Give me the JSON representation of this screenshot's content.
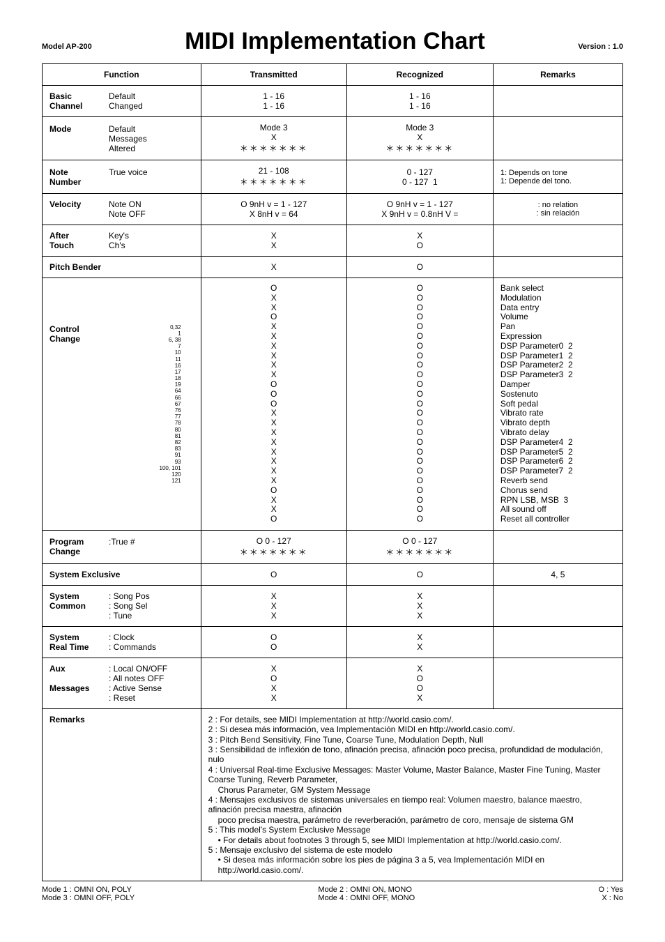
{
  "header": {
    "model": "Model AP-200",
    "title": "MIDI Implementation Chart",
    "version": "Version : 1.0"
  },
  "columns": {
    "function": "Function",
    "transmitted": "Transmitted",
    "recognized": "Recognized",
    "remarks": "Remarks"
  },
  "rows": {
    "basic_channel": {
      "label": "Basic\nChannel",
      "sub": "Default\nChanged",
      "tx": "1 - 16\n1 - 16",
      "rx": "1 - 16\n1 - 16",
      "remarks": ""
    },
    "mode": {
      "label": "Mode",
      "sub": "Default\nMessages\nAltered",
      "tx": "Mode 3\nX",
      "tx_stars": "＊＊＊＊＊＊＊",
      "rx": "Mode 3\nX",
      "rx_stars": "＊＊＊＊＊＊＊",
      "remarks": ""
    },
    "note_number": {
      "label": "Note\nNumber",
      "sub": "True voice",
      "tx": "21 - 108",
      "tx_stars": "＊＊＊＊＊＊＊",
      "rx": "0 - 127\n0 - 127  1",
      "remarks": "1: Depends on tone\n1: Depende del tono."
    },
    "velocity": {
      "label": "Velocity",
      "sub": "Note ON\nNote OFF",
      "tx": "O 9nH v = 1 - 127\nX 8nH v = 64",
      "rx": "O 9nH v = 1 - 127\nX 9nH v = 0.8nH V =",
      "remarks": ": no relation\n: sin relación"
    },
    "after_touch": {
      "label": "After\nTouch",
      "sub": "Key's\nCh's",
      "tx": "X\nX",
      "rx": "X\nO",
      "remarks": ""
    },
    "pitch_bender": {
      "label": "Pitch Bender",
      "sub": "",
      "tx": "X",
      "rx": "O",
      "remarks": ""
    },
    "control_change": {
      "label": "Control\nChange",
      "numbers": "0,32\n1\n6, 38\n7\n10\n11\n16\n17\n18\n19\n64\n66\n67\n76\n77\n78\n80\n81\n82\n83\n91\n93\n100, 101\n120\n121",
      "tx": "O\nX\nX\nO\nX\nX\nX\nX\nX\nX\nO\nO\nO\nX\nX\nX\nX\nX\nX\nX\nX\nO\nX\nX\nO",
      "rx": "O\nO\nO\nO\nO\nO\nO\nO\nO\nO\nO\nO\nO\nO\nO\nO\nO\nO\nO\nO\nO\nO\nO\nO\nO",
      "remarks": "Bank select\nModulation\nData entry\nVolume\nPan\nExpression\nDSP Parameter0  2\nDSP Parameter1  2\nDSP Parameter2  2\nDSP Parameter3  2\nDamper\nSostenuto\nSoft pedal\nVibrato rate\nVibrato depth\nVibrato delay\nDSP Parameter4  2\nDSP Parameter5  2\nDSP Parameter6  2\nDSP Parameter7  2\nReverb send\nChorus send\nRPN LSB, MSB  3\nAll sound off\nReset all controller"
    },
    "program_change": {
      "label": "Program\nChange",
      "sub": ":True #",
      "tx": "O 0 - 127",
      "tx_stars": "＊＊＊＊＊＊＊",
      "rx": "O 0 - 127",
      "rx_stars": "＊＊＊＊＊＊＊",
      "remarks": ""
    },
    "sysex": {
      "label": "System Exclusive",
      "tx": "O",
      "rx": "O",
      "remarks": "4,  5"
    },
    "system_common": {
      "label": "System\nCommon",
      "sub": ": Song Pos\n: Song Sel\n: Tune",
      "tx": "X\nX\nX",
      "rx": "X\nX\nX",
      "remarks": ""
    },
    "system_realtime": {
      "label": "System\nReal Time",
      "sub": ": Clock\n: Commands",
      "tx": "O\nO",
      "rx": "X\nX",
      "remarks": ""
    },
    "aux_messages": {
      "label": "Aux\n\nMessages",
      "sub": ": Local ON/OFF\n: All notes OFF\n: Active Sense\n: Reset",
      "tx": "X\nO\nX\nX",
      "rx": "X\nO\nO\nX",
      "remarks": ""
    },
    "remarks_row": {
      "label": "Remarks",
      "lines": [
        "2 :  For details, see MIDI Implementation at http://world.casio.com/.",
        "2 :  Si desea más información, vea Implementación MIDI en http://world.casio.com/.",
        "3 :  Pitch Bend Sensitivity, Fine Tune, Coarse Tune, Modulation Depth, Null",
        "3 :  Sensibilidad de inflexión de tono, afinación precisa, afinación poco precisa, profundidad de modulación, nulo",
        "4 :  Universal Real-time Exclusive Messages: Master Volume, Master Balance, Master Fine Tuning, Master Coarse Tuning, Reverb Parameter,",
        "      Chorus Parameter, GM System Message",
        "4 :  Mensajes exclusivos de sistemas universales en tiempo real: Volumen maestro, balance maestro, afinación precisa maestra, afinación",
        "      poco precisa maestra, parámetro de reverberación, parámetro de coro, mensaje de sistema GM",
        "5 :  This model's System Exclusive Message",
        "      •  For details about footnotes 3 through 5, see MIDI Implementation at http://world.casio.com/.",
        "5 :  Mensaje exclusivo del sistema de este modelo",
        "      •  Si desea más información sobre los pies de página 3 a 5, vea Implementación MIDI en http://world.casio.com/."
      ]
    }
  },
  "footer": {
    "mode1": "Mode 1 : OMNI ON, POLY",
    "mode3": "Mode 3 : OMNI OFF, POLY",
    "mode2": "Mode 2 : OMNI ON, MONO",
    "mode4": "Mode 4 : OMNI OFF, MONO",
    "yes": "O : Yes",
    "no": "X : No"
  },
  "style": {
    "background_color": "#ffffff",
    "border_color": "#000000",
    "title_fontsize": 34,
    "body_fontsize": 12,
    "small_fontsize": 8
  }
}
